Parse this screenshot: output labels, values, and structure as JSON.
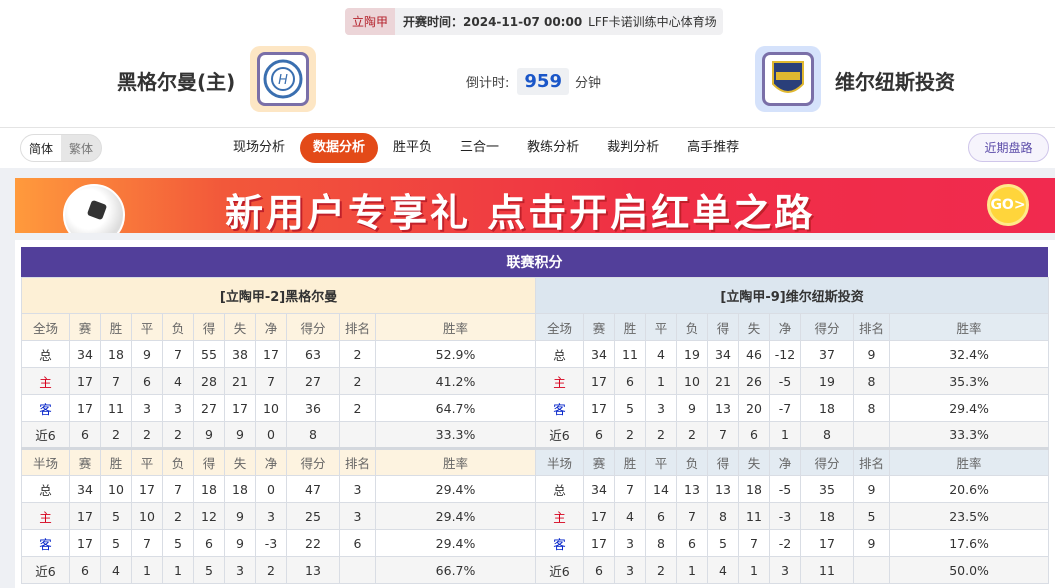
{
  "header": {
    "league": "立陶甲",
    "kickoff_label": "开赛时间：",
    "kickoff_time": "2024-11-07 00:00",
    "venue": "LFF卡诺训练中心体育场"
  },
  "home_team": {
    "name": "黑格尔曼(主)",
    "logo_color": "#fde6c4"
  },
  "away_team": {
    "name": "维尔纽斯投资",
    "logo_color": "#d5e2fb"
  },
  "countdown": {
    "label": "倒计时:",
    "value": "959",
    "unit": "分钟"
  },
  "lang": {
    "simplified": "简体",
    "traditional": "繁体"
  },
  "tabs": [
    "现场分析",
    "数据分析",
    "胜平负",
    "三合一",
    "教练分析",
    "裁判分析",
    "高手推荐"
  ],
  "active_tab": "数据分析",
  "recent_button": "近期盘路",
  "banner": {
    "text": "新用户专享礼  点击开启红单之路",
    "go": "GO>"
  },
  "standings": {
    "title": "联赛积分",
    "columns": [
      "赛",
      "胜",
      "平",
      "负",
      "得",
      "失",
      "净",
      "得分",
      "排名",
      "胜率"
    ],
    "full_label": "全场",
    "half_label": "半场",
    "home": {
      "title": "[立陶甲-2]黑格尔曼",
      "full": [
        [
          "总",
          "34",
          "18",
          "9",
          "7",
          "55",
          "38",
          "17",
          "63",
          "2",
          "52.9%"
        ],
        [
          "主",
          "17",
          "7",
          "6",
          "4",
          "28",
          "21",
          "7",
          "27",
          "2",
          "41.2%"
        ],
        [
          "客",
          "17",
          "11",
          "3",
          "3",
          "27",
          "17",
          "10",
          "36",
          "2",
          "64.7%"
        ],
        [
          "近6",
          "6",
          "2",
          "2",
          "2",
          "9",
          "9",
          "0",
          "8",
          "",
          "33.3%"
        ]
      ],
      "half": [
        [
          "总",
          "34",
          "10",
          "17",
          "7",
          "18",
          "18",
          "0",
          "47",
          "3",
          "29.4%"
        ],
        [
          "主",
          "17",
          "5",
          "10",
          "2",
          "12",
          "9",
          "3",
          "25",
          "3",
          "29.4%"
        ],
        [
          "客",
          "17",
          "5",
          "7",
          "5",
          "6",
          "9",
          "-3",
          "22",
          "6",
          "29.4%"
        ],
        [
          "近6",
          "6",
          "4",
          "1",
          "1",
          "5",
          "3",
          "2",
          "13",
          "",
          "66.7%"
        ]
      ]
    },
    "away": {
      "title": "[立陶甲-9]维尔纽斯投资",
      "full": [
        [
          "总",
          "34",
          "11",
          "4",
          "19",
          "34",
          "46",
          "-12",
          "37",
          "9",
          "32.4%"
        ],
        [
          "主",
          "17",
          "6",
          "1",
          "10",
          "21",
          "26",
          "-5",
          "19",
          "8",
          "35.3%"
        ],
        [
          "客",
          "17",
          "5",
          "3",
          "9",
          "13",
          "20",
          "-7",
          "18",
          "8",
          "29.4%"
        ],
        [
          "近6",
          "6",
          "2",
          "2",
          "2",
          "7",
          "6",
          "1",
          "8",
          "",
          "33.3%"
        ]
      ],
      "half": [
        [
          "总",
          "34",
          "7",
          "14",
          "13",
          "13",
          "18",
          "-5",
          "35",
          "9",
          "20.6%"
        ],
        [
          "主",
          "17",
          "4",
          "6",
          "7",
          "8",
          "11",
          "-3",
          "18",
          "5",
          "23.5%"
        ],
        [
          "客",
          "17",
          "3",
          "8",
          "6",
          "5",
          "7",
          "-2",
          "17",
          "9",
          "17.6%"
        ],
        [
          "近6",
          "6",
          "3",
          "2",
          "1",
          "4",
          "1",
          "3",
          "11",
          "",
          "50.0%"
        ]
      ]
    }
  }
}
